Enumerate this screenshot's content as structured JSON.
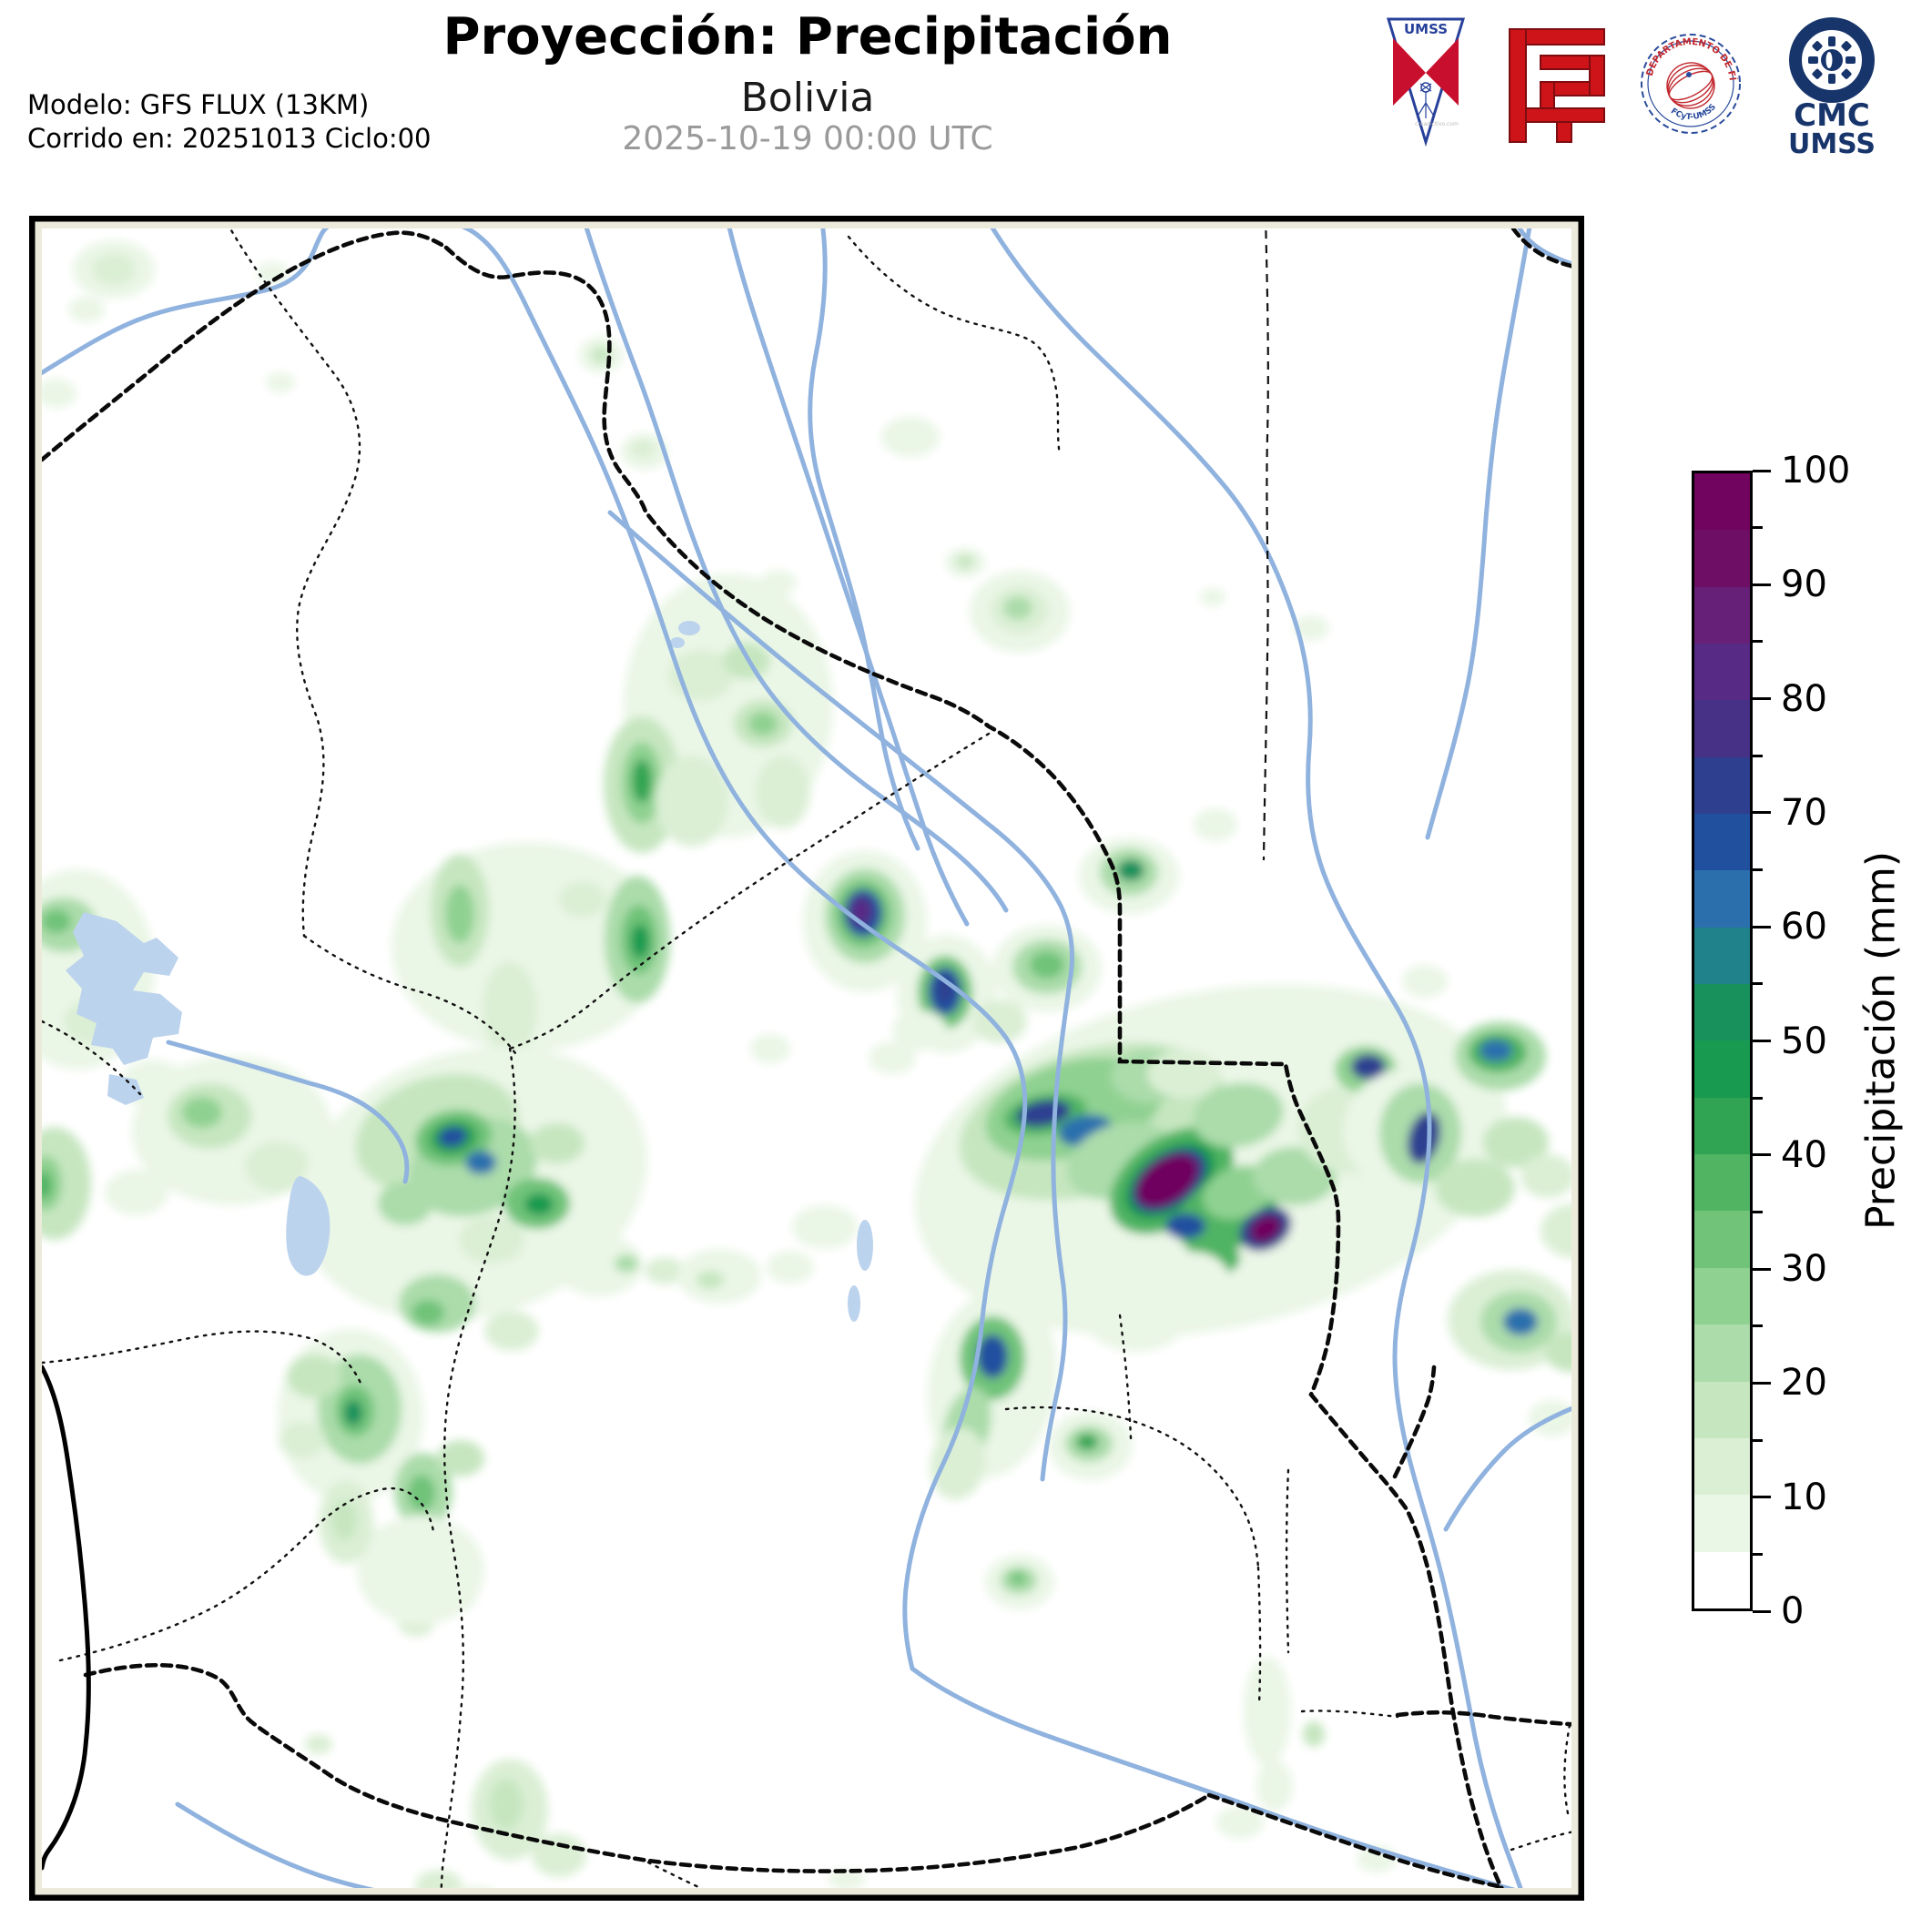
{
  "header": {
    "title": "Proyección: Precipitación",
    "subtitle": "Bolivia",
    "valid_datetime": "2025-10-19 00:00 UTC",
    "model": "Modelo: GFS FLUX (13KM)",
    "run": "Corrido en: 20251013 Ciclo:00"
  },
  "logos": {
    "umss_text": "UMSS",
    "umss_credit": "creadictivo.com",
    "stamp_text_top": "DEPARTAMENTO DE FÍSICA",
    "stamp_text_bottom": "FCyT-UMSS",
    "cmc_line1": "CMC",
    "cmc_line2": "UMSS"
  },
  "colorbar": {
    "label": "Precipitación (mm)",
    "min": 0,
    "max": 100,
    "step": 5,
    "major_ticks": [
      0,
      10,
      20,
      30,
      40,
      50,
      60,
      70,
      80,
      90,
      100
    ],
    "colors": [
      "#ffffff",
      "#eaf6e6",
      "#dbefd5",
      "#c6e6c0",
      "#abdcaa",
      "#8fd191",
      "#70c379",
      "#50b463",
      "#30a453",
      "#189a50",
      "#18915c",
      "#20828b",
      "#2b6fad",
      "#21509f",
      "#2e3f90",
      "#463186",
      "#572b85",
      "#672077",
      "#6e0f65",
      "#70045e"
    ]
  },
  "map": {
    "region": "Bolivia",
    "units": "mm",
    "precip_blobs": [
      [
        125,
        296,
        45,
        32,
        0,
        1
      ],
      [
        125,
        296,
        24,
        18,
        0,
        2
      ],
      [
        95,
        340,
        20,
        14,
        0,
        1
      ],
      [
        62,
        432,
        22,
        16,
        0,
        1
      ],
      [
        300,
        300,
        18,
        12,
        0,
        1
      ],
      [
        308,
        420,
        16,
        11,
        0,
        1
      ],
      [
        660,
        390,
        24,
        20,
        0,
        1
      ],
      [
        660,
        390,
        11,
        9,
        0,
        3
      ],
      [
        708,
        496,
        26,
        20,
        0,
        1
      ],
      [
        706,
        493,
        13,
        10,
        0,
        2
      ],
      [
        1000,
        480,
        32,
        22,
        0,
        1
      ],
      [
        855,
        640,
        20,
        14,
        0,
        1
      ],
      [
        800,
        775,
        115,
        145,
        0,
        1
      ],
      [
        770,
        742,
        36,
        28,
        0,
        2
      ],
      [
        820,
        726,
        26,
        20,
        0,
        3
      ],
      [
        838,
        795,
        32,
        26,
        0,
        3
      ],
      [
        838,
        795,
        16,
        13,
        0,
        5
      ],
      [
        705,
        862,
        42,
        75,
        0,
        3
      ],
      [
        705,
        860,
        22,
        45,
        0,
        5
      ],
      [
        705,
        858,
        11,
        24,
        0,
        8
      ],
      [
        760,
        880,
        40,
        50,
        0,
        2
      ],
      [
        860,
        870,
        30,
        40,
        0,
        2
      ],
      [
        1120,
        672,
        55,
        45,
        0,
        1
      ],
      [
        1120,
        670,
        32,
        26,
        0,
        2
      ],
      [
        1118,
        668,
        16,
        13,
        0,
        4
      ],
      [
        1060,
        618,
        22,
        16,
        0,
        1
      ],
      [
        1060,
        617,
        10,
        8,
        0,
        3
      ],
      [
        1440,
        690,
        20,
        14,
        0,
        1
      ],
      [
        1332,
        656,
        14,
        10,
        0,
        1
      ],
      [
        580,
        1040,
        150,
        115,
        0,
        1
      ],
      [
        505,
        1000,
        32,
        62,
        0,
        3
      ],
      [
        505,
        1004,
        16,
        32,
        0,
        5
      ],
      [
        560,
        1108,
        30,
        52,
        0,
        2
      ],
      [
        640,
        988,
        26,
        20,
        0,
        2
      ],
      [
        700,
        1032,
        36,
        70,
        0,
        4
      ],
      [
        702,
        1032,
        20,
        38,
        0,
        6
      ],
      [
        703,
        1034,
        10,
        19,
        0,
        9
      ],
      [
        620,
        1210,
        40,
        30,
        0,
        1
      ],
      [
        85,
        1065,
        85,
        110,
        0,
        1
      ],
      [
        70,
        1016,
        36,
        30,
        0,
        4
      ],
      [
        62,
        1012,
        16,
        13,
        0,
        6
      ],
      [
        100,
        1122,
        30,
        24,
        0,
        2
      ],
      [
        168,
        1190,
        36,
        26,
        0,
        1
      ],
      [
        255,
        1242,
        110,
        82,
        0,
        1
      ],
      [
        230,
        1226,
        46,
        36,
        0,
        3
      ],
      [
        222,
        1222,
        22,
        17,
        0,
        5
      ],
      [
        305,
        1282,
        36,
        28,
        0,
        2
      ],
      [
        60,
        1300,
        40,
        62,
        0,
        3
      ],
      [
        50,
        1300,
        18,
        30,
        0,
        5
      ],
      [
        48,
        1302,
        9,
        15,
        0,
        7
      ],
      [
        150,
        1310,
        35,
        25,
        0,
        1
      ],
      [
        520,
        1300,
        195,
        145,
        -18,
        1
      ],
      [
        480,
        1245,
        92,
        62,
        -18,
        3
      ],
      [
        520,
        1282,
        72,
        52,
        -18,
        4
      ],
      [
        498,
        1250,
        42,
        30,
        -10,
        6
      ],
      [
        498,
        1250,
        27,
        19,
        -10,
        8
      ],
      [
        497,
        1249,
        16,
        11,
        -10,
        13
      ],
      [
        528,
        1277,
        17,
        13,
        0,
        12
      ],
      [
        590,
        1322,
        36,
        28,
        0,
        6
      ],
      [
        592,
        1323,
        16,
        12,
        0,
        9
      ],
      [
        445,
        1322,
        30,
        24,
        0,
        4
      ],
      [
        612,
        1256,
        30,
        22,
        0,
        3
      ],
      [
        540,
        1362,
        36,
        26,
        0,
        2
      ],
      [
        480,
        1432,
        42,
        32,
        0,
        4
      ],
      [
        470,
        1442,
        18,
        14,
        0,
        6
      ],
      [
        562,
        1462,
        30,
        22,
        0,
        2
      ],
      [
        658,
        1390,
        48,
        34,
        0,
        1
      ],
      [
        688,
        1388,
        13,
        10,
        0,
        4
      ],
      [
        730,
        1396,
        22,
        15,
        0,
        2
      ],
      [
        790,
        1402,
        46,
        30,
        0,
        1
      ],
      [
        780,
        1406,
        15,
        10,
        0,
        3
      ],
      [
        385,
        1555,
        80,
        95,
        0,
        1
      ],
      [
        395,
        1548,
        46,
        60,
        0,
        4
      ],
      [
        390,
        1550,
        21,
        28,
        0,
        6
      ],
      [
        388,
        1552,
        10,
        14,
        0,
        10
      ],
      [
        345,
        1512,
        30,
        24,
        0,
        3
      ],
      [
        332,
        1582,
        26,
        20,
        0,
        2
      ],
      [
        465,
        1638,
        32,
        42,
        0,
        4
      ],
      [
        463,
        1640,
        15,
        20,
        0,
        6
      ],
      [
        506,
        1602,
        26,
        20,
        0,
        3
      ],
      [
        430,
        1702,
        30,
        26,
        0,
        3
      ],
      [
        428,
        1706,
        12,
        10,
        0,
        5
      ],
      [
        497,
        1752,
        26,
        20,
        0,
        2
      ],
      [
        457,
        1782,
        20,
        16,
        0,
        2
      ],
      [
        462,
        1725,
        70,
        60,
        0,
        1
      ],
      [
        950,
        1012,
        68,
        78,
        0,
        1
      ],
      [
        950,
        1006,
        44,
        52,
        0,
        4
      ],
      [
        948,
        1004,
        31,
        37,
        0,
        6
      ],
      [
        948,
        1003,
        21,
        26,
        0,
        13
      ],
      [
        946,
        1001,
        12,
        16,
        0,
        16
      ],
      [
        1040,
        1092,
        55,
        65,
        0,
        1
      ],
      [
        1038,
        1090,
        30,
        40,
        0,
        6
      ],
      [
        1038,
        1089,
        18,
        26,
        0,
        13
      ],
      [
        1038,
        1087,
        9,
        14,
        0,
        14
      ],
      [
        1098,
        1122,
        30,
        24,
        0,
        2
      ],
      [
        1150,
        1064,
        60,
        48,
        0,
        1
      ],
      [
        1150,
        1062,
        38,
        30,
        0,
        4
      ],
      [
        1150,
        1060,
        19,
        15,
        0,
        6
      ],
      [
        1240,
        962,
        55,
        42,
        0,
        1
      ],
      [
        1240,
        958,
        32,
        26,
        0,
        4
      ],
      [
        1242,
        956,
        15,
        12,
        0,
        10
      ],
      [
        1335,
        906,
        24,
        18,
        0,
        1
      ],
      [
        1330,
        1275,
        330,
        185,
        -12,
        1
      ],
      [
        1200,
        1232,
        150,
        80,
        -15,
        3
      ],
      [
        1180,
        1218,
        100,
        52,
        -15,
        5
      ],
      [
        1148,
        1224,
        46,
        22,
        -10,
        7
      ],
      [
        1146,
        1223,
        30,
        14,
        -10,
        14
      ],
      [
        1192,
        1242,
        30,
        17,
        -10,
        12
      ],
      [
        1262,
        1182,
        42,
        30,
        0,
        4
      ],
      [
        1230,
        1275,
        60,
        40,
        -20,
        4
      ],
      [
        1287,
        1297,
        76,
        48,
        -35,
        7
      ],
      [
        1285,
        1297,
        56,
        34,
        -35,
        9
      ],
      [
        1284,
        1297,
        46,
        28,
        -35,
        14
      ],
      [
        1282,
        1297,
        38,
        23,
        -35,
        19
      ],
      [
        1348,
        1332,
        60,
        40,
        -30,
        7
      ],
      [
        1390,
        1350,
        30,
        22,
        -30,
        14
      ],
      [
        1390,
        1350,
        18,
        13,
        -30,
        19
      ],
      [
        1302,
        1347,
        22,
        14,
        0,
        13
      ],
      [
        1332,
        1382,
        30,
        20,
        0,
        7
      ],
      [
        1360,
        1310,
        40,
        28,
        -20,
        5
      ],
      [
        1422,
        1292,
        46,
        32,
        0,
        4
      ],
      [
        1300,
        1180,
        40,
        26,
        0,
        2
      ],
      [
        1360,
        1225,
        50,
        35,
        -10,
        4
      ],
      [
        1490,
        1240,
        65,
        50,
        0,
        2
      ],
      [
        1500,
        1175,
        34,
        26,
        0,
        5
      ],
      [
        1503,
        1172,
        19,
        14,
        0,
        14
      ],
      [
        1555,
        1242,
        80,
        70,
        0,
        1
      ],
      [
        1560,
        1245,
        45,
        55,
        0,
        4
      ],
      [
        1564,
        1250,
        17,
        29,
        15,
        14
      ],
      [
        1620,
        1305,
        44,
        32,
        0,
        3
      ],
      [
        1665,
        1255,
        36,
        28,
        0,
        3
      ],
      [
        1700,
        1292,
        30,
        24,
        0,
        2
      ],
      [
        1648,
        1160,
        50,
        38,
        0,
        4
      ],
      [
        1645,
        1156,
        32,
        22,
        0,
        7
      ],
      [
        1643,
        1154,
        18,
        12,
        0,
        12
      ],
      [
        1660,
        1450,
        70,
        55,
        0,
        2
      ],
      [
        1668,
        1452,
        42,
        34,
        0,
        4
      ],
      [
        1670,
        1452,
        19,
        15,
        0,
        12
      ],
      [
        1725,
        1485,
        28,
        22,
        0,
        3
      ],
      [
        1730,
        1352,
        38,
        30,
        0,
        2
      ],
      [
        1705,
        1558,
        26,
        20,
        0,
        1
      ],
      [
        1090,
        1520,
        70,
        105,
        10,
        1
      ],
      [
        1090,
        1492,
        36,
        46,
        0,
        6
      ],
      [
        1090,
        1490,
        17,
        24,
        0,
        13
      ],
      [
        1062,
        1568,
        25,
        45,
        15,
        4
      ],
      [
        1052,
        1608,
        30,
        40,
        10,
        2
      ],
      [
        1198,
        1588,
        46,
        38,
        0,
        1
      ],
      [
        1196,
        1586,
        26,
        20,
        0,
        4
      ],
      [
        1194,
        1584,
        12,
        9,
        0,
        8
      ],
      [
        1248,
        1440,
        60,
        45,
        0,
        1
      ],
      [
        1310,
        1405,
        40,
        30,
        0,
        1
      ],
      [
        1120,
        1738,
        38,
        30,
        0,
        1
      ],
      [
        1119,
        1736,
        20,
        15,
        0,
        4
      ],
      [
        1118,
        1734,
        9,
        7,
        0,
        6
      ],
      [
        380,
        1672,
        30,
        46,
        0,
        2
      ],
      [
        378,
        1670,
        14,
        22,
        0,
        3
      ],
      [
        350,
        1916,
        15,
        11,
        0,
        2
      ],
      [
        560,
        1988,
        42,
        56,
        0,
        2
      ],
      [
        556,
        1982,
        19,
        28,
        0,
        3
      ],
      [
        614,
        2038,
        30,
        24,
        0,
        2
      ],
      [
        482,
        2072,
        26,
        18,
        0,
        2
      ],
      [
        520,
        2088,
        30,
        16,
        0,
        1
      ],
      [
        1392,
        1880,
        26,
        60,
        0,
        1
      ],
      [
        1400,
        1962,
        20,
        28,
        0,
        1
      ],
      [
        1443,
        1905,
        12,
        14,
        0,
        3
      ],
      [
        1362,
        2002,
        26,
        18,
        0,
        1
      ],
      [
        1512,
        2042,
        22,
        15,
        0,
        1
      ],
      [
        906,
        1348,
        36,
        24,
        0,
        1
      ],
      [
        868,
        1392,
        26,
        18,
        0,
        1
      ],
      [
        1010,
        1132,
        30,
        22,
        0,
        1
      ],
      [
        980,
        1162,
        26,
        18,
        0,
        1
      ],
      [
        846,
        1152,
        22,
        16,
        0,
        1
      ],
      [
        930,
        2065,
        20,
        12,
        0,
        1
      ],
      [
        1565,
        1078,
        25,
        18,
        0,
        1
      ]
    ]
  }
}
